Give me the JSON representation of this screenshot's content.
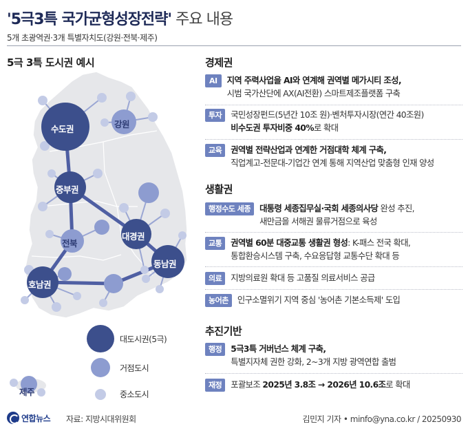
{
  "header": {
    "title_main": "'5극3특 국가균형성장전략'",
    "title_suffix": " 주요 내용",
    "subtitle": "5개 초광역권·3개 특별자치도(강원·전북·제주)"
  },
  "map": {
    "title": "5극 3특 도시권 예시",
    "nodes": {
      "sudo": "수도권",
      "gangwon": "강원",
      "jungbu": "중부권",
      "jeonbuk": "전북",
      "daegyeong": "대경권",
      "honam": "호남권",
      "dongnam": "동남권",
      "jeju": "제주"
    },
    "legend": {
      "large": "대도시권(5극)",
      "medium": "거점도시",
      "small": "중소도시"
    },
    "colors": {
      "large": "#3c4f8c",
      "medium": "#8d9cd0",
      "small": "#c3cbe6",
      "land": "#e6e7ea",
      "link": "#5867a8"
    }
  },
  "sections": {
    "economy": {
      "title": "경제권",
      "items": [
        {
          "tag": "AI",
          "lines": [
            {
              "bold": "지역 주력사업을 AI와 연계해 권역별 메가시티 조성,",
              "normal": ""
            },
            {
              "bold": "",
              "normal": "시범 국가산단에 AX(AI전환) 스마트제조플랫폼 구축"
            }
          ]
        },
        {
          "tag": "투자",
          "lines": [
            {
              "bold": "",
              "normal": "국민성장펀드(5년간 10조 원)·벤처투자시장(연간 40조원)"
            },
            {
              "bold": "비수도권 투자비중 40%",
              "normal": "로 확대"
            }
          ]
        },
        {
          "tag": "교육",
          "lines": [
            {
              "bold": "권역별 전략산업과 연계한 거점대학 체계 구축,",
              "normal": ""
            },
            {
              "bold": "",
              "normal": "직업계고-전문대-기업간 연계 통해 지역산업 맞춤형 인재 양성"
            }
          ]
        }
      ]
    },
    "life": {
      "title": "생활권",
      "items": [
        {
          "tag": "행정수도 세종",
          "lines": [
            {
              "bold": "대통령 세종집무실·국회 세종의사당",
              "normal": " 완성 추진,"
            },
            {
              "bold": "",
              "normal": "새만금을 서해권 물류거점으로 육성"
            }
          ]
        },
        {
          "tag": "교통",
          "lines": [
            {
              "bold": "권역별 60분 대중교통 생활권 형성",
              "normal": ": K-패스 전국 확대,"
            },
            {
              "bold": "",
              "normal": "통합환승시스템 구축, 수요응답형 교통수단 확대 등"
            }
          ]
        },
        {
          "tag": "의료",
          "lines": [
            {
              "bold": "",
              "normal": "지방의료원 확대 등 고품질 의료서비스 공급"
            }
          ]
        },
        {
          "tag": "농어촌",
          "lines": [
            {
              "bold": "",
              "normal": "인구소멸위기 지역 중심 '농어촌 기본소득제' 도입"
            }
          ]
        }
      ]
    },
    "base": {
      "title": "추진기반",
      "items": [
        {
          "tag": "행정",
          "lines": [
            {
              "bold": "5극3특 거버넌스 체계 구축,",
              "normal": ""
            },
            {
              "bold": "",
              "normal": "특별지자체 권한 강화, 2~3개 지방 광역연합 출범"
            }
          ]
        },
        {
          "tag": "재정",
          "lines": [
            {
              "bold": "",
              "normal": "포괄보조 "
            },
            {
              "bold": "2025년 3.8조 → 2026년 10.6조",
              "normal": "로 확대"
            }
          ]
        }
      ]
    }
  },
  "footer": {
    "logo": "연합뉴스",
    "source": "자료: 지방시대위원회",
    "credit": "김민지 기자 • minfo@yna.co.kr / 20250930"
  }
}
